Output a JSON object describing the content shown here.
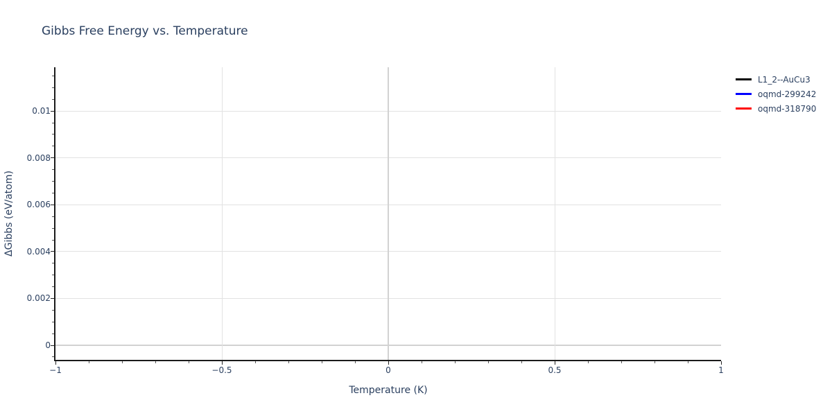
{
  "chart_data": {
    "type": "line",
    "title": "Gibbs Free Energy vs. Temperature",
    "xlabel": "Temperature (K)",
    "ylabel": "ΔGibbs (eV/atom)",
    "xlim": [
      -1,
      1
    ],
    "ylim": [
      -0.00065,
      0.01187
    ],
    "x_major_ticks": [
      -1,
      -0.5,
      0,
      0.5,
      1
    ],
    "x_ticklabels": [
      "−1",
      "−0.5",
      "0",
      "0.5",
      "1"
    ],
    "x_minor_tick_step": 0.1,
    "y_major_ticks": [
      0,
      0.002,
      0.004,
      0.006,
      0.008,
      0.01
    ],
    "y_ticklabels": [
      "0",
      "0.002",
      "0.004",
      "0.006",
      "0.008",
      "0.01"
    ],
    "y_minor_tick_step": 0.0005,
    "grid": true,
    "legend_position": "top-right",
    "series": [
      {
        "name": "L1_2--AuCu3",
        "color": "#000000",
        "x": [],
        "y": []
      },
      {
        "name": "oqmd-299242",
        "color": "#0000ff",
        "x": [],
        "y": []
      },
      {
        "name": "oqmd-318790",
        "color": "#ff0000",
        "x": [],
        "y": []
      }
    ]
  },
  "colors": {
    "text": "#2a3f5f",
    "axis_line": "#1a1a1a",
    "gridline": "#e2e2e2",
    "zeroline": "#d2d2d2",
    "tick_major": "#222222",
    "tick_minor": "#555555",
    "background": "#ffffff"
  }
}
